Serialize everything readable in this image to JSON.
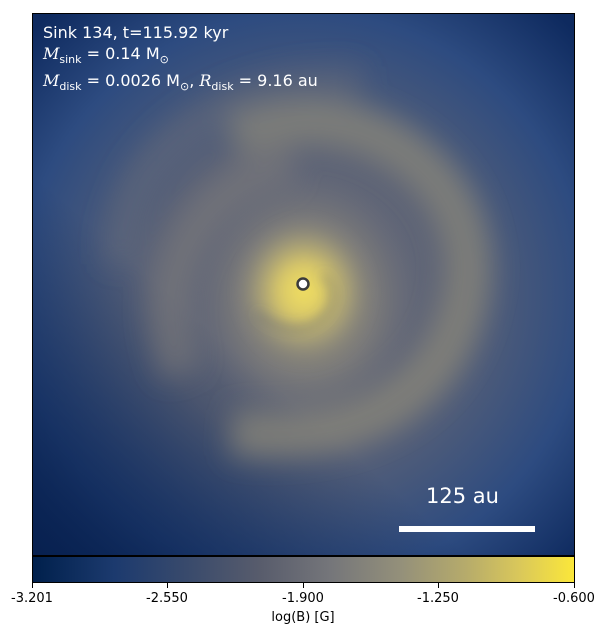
{
  "panel": {
    "title_line": "Sink 134, t=115.92 kyr",
    "msink_symbol": "M",
    "msink_sub": "sink",
    "msink_value": " = 0.14 M",
    "msink_sun": "⊙",
    "mdisk_symbol": "M",
    "mdisk_sub": "disk",
    "mdisk_value": " = 0.0026 M",
    "mdisk_sun": "⊙",
    "mdisk_sep": ", ",
    "rdisk_symbol": "R",
    "rdisk_sub": "disk",
    "rdisk_value": " = 9.16 au",
    "scalebar_label": "125 au"
  },
  "colorbar": {
    "label": "log(B) [G]",
    "ticks": [
      "-3.201",
      "-2.550",
      "-1.900",
      "-1.250",
      "-0.600"
    ],
    "min": -3.201,
    "max": -0.6,
    "colormap": "cividis"
  },
  "colors": {
    "background_dark": "#213f78",
    "core_bright": "#f0df5f",
    "sink_marker_fill": "#ffffff",
    "sink_marker_edge": "#3b3b3b",
    "text": "#ffffff"
  }
}
